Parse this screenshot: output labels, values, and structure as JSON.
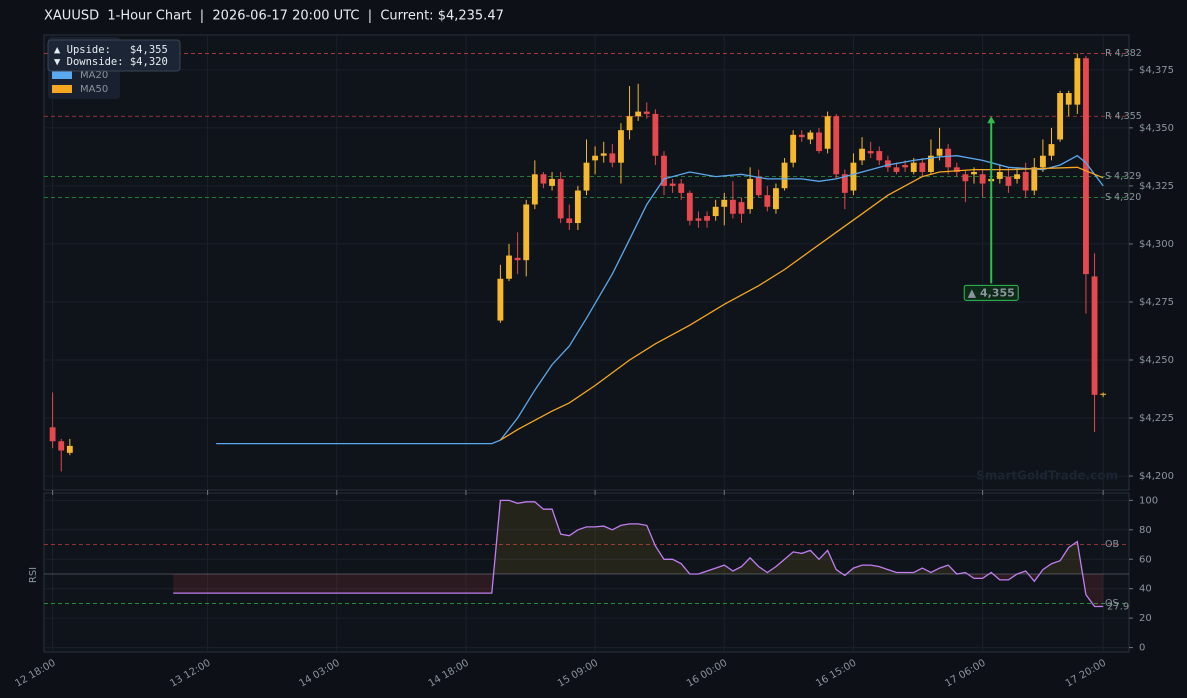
{
  "title": "XAUUSD  1-Hour Chart  |  2026-06-17 20:00 UTC  |  Current: $4,235.47",
  "watermark": "SmartGoldTrade.com",
  "info": [
    "▲ Upside:   $4,355",
    "▼ Downside: $4,320"
  ],
  "chart_data": [
    {
      "type": "candlestick",
      "x": [
        "12 18:00",
        "12 19:00",
        "12 20:00",
        "14 22:00",
        "14 23:00",
        "15 00:00",
        "15 01:00",
        "15 02:00",
        "15 03:00",
        "15 04:00",
        "15 05:00",
        "15 06:00",
        "15 07:00",
        "15 08:00",
        "15 09:00",
        "15 10:00",
        "15 11:00",
        "15 12:00",
        "15 13:00",
        "15 14:00",
        "15 15:00",
        "15 16:00",
        "15 17:00",
        "15 18:00",
        "15 19:00",
        "15 20:00",
        "15 21:00",
        "15 22:00",
        "15 23:00",
        "16 00:00",
        "16 01:00",
        "16 02:00",
        "16 03:00",
        "16 04:00",
        "16 05:00",
        "16 06:00",
        "16 07:00",
        "16 08:00",
        "16 09:00",
        "16 10:00",
        "16 11:00",
        "16 12:00",
        "16 13:00",
        "16 14:00",
        "16 15:00",
        "16 16:00",
        "16 17:00",
        "16 18:00",
        "16 19:00",
        "16 20:00",
        "16 21:00",
        "16 22:00",
        "16 23:00",
        "17 00:00",
        "17 01:00",
        "17 02:00",
        "17 03:00",
        "17 04:00",
        "17 05:00",
        "17 06:00",
        "17 07:00",
        "17 08:00",
        "17 09:00",
        "17 10:00",
        "17 11:00",
        "17 12:00",
        "17 13:00",
        "17 14:00",
        "17 15:00",
        "17 16:00",
        "17 17:00",
        "17 18:00",
        "17 19:00",
        "17 20:00"
      ],
      "open": [
        4221,
        4215,
        4210,
        4267,
        4285,
        4294,
        4293,
        4317,
        4330,
        4325,
        4328,
        4311,
        4309,
        4323,
        4336,
        4338,
        4339,
        4335,
        4349,
        4355,
        4357,
        4356,
        4338,
        4326,
        4326,
        4322,
        4311,
        4312,
        4312,
        4316,
        4319,
        4318,
        4315,
        4329,
        4321,
        4315,
        4324,
        4335,
        4347,
        4345,
        4348,
        4341,
        4355,
        4330,
        4323,
        4336,
        4340,
        4340,
        4336,
        4333,
        4334,
        4331,
        4335,
        4331,
        4338,
        4341,
        4333,
        4330,
        4330,
        4330,
        4327,
        4328,
        4329,
        4328,
        4331,
        4323,
        4333,
        4338,
        4345,
        4360,
        4360,
        4380,
        4286,
        4235
      ],
      "high": [
        4236,
        4216,
        4216,
        4291,
        4300,
        4305,
        4319,
        4336,
        4331,
        4331,
        4331,
        4317,
        4325,
        4345,
        4342,
        4344,
        4343,
        4352,
        4368,
        4369,
        4361,
        4358,
        4340,
        4328,
        4328,
        4323,
        4314,
        4314,
        4319,
        4322,
        4327,
        4320,
        4333,
        4332,
        4325,
        4326,
        4337,
        4349,
        4349,
        4349,
        4350,
        4357,
        4356,
        4332,
        4339,
        4346,
        4344,
        4342,
        4338,
        4335,
        4336,
        4337,
        4337,
        4345,
        4350,
        4343,
        4335,
        4332,
        4333,
        4332,
        4333,
        4334,
        4333,
        4333,
        4335,
        4337,
        4345,
        4350,
        4366,
        4366,
        4382,
        4381,
        4296,
        4236
      ],
      "low": [
        4212,
        4202,
        4209,
        4266,
        4284,
        4287,
        4286,
        4315,
        4324,
        4323,
        4309,
        4306,
        4306,
        4321,
        4330,
        4335,
        4333,
        4326,
        4345,
        4353,
        4354,
        4334,
        4321,
        4322,
        4319,
        4308,
        4307,
        4307,
        4310,
        4308,
        4311,
        4309,
        4313,
        4320,
        4314,
        4313,
        4323,
        4333,
        4344,
        4343,
        4339,
        4339,
        4328,
        4315,
        4321,
        4334,
        4337,
        4334,
        4331,
        4330,
        4331,
        4330,
        4329,
        4330,
        4336,
        4330,
        4329,
        4318,
        4326,
        4320,
        4324,
        4326,
        4322,
        4326,
        4320,
        4321,
        4331,
        4336,
        4344,
        4355,
        4356,
        4270,
        4219,
        4234
      ],
      "close": [
        4215,
        4211,
        4213,
        4285,
        4295,
        4293,
        4317,
        4330,
        4326,
        4328,
        4311,
        4309,
        4323,
        4335,
        4338,
        4339,
        4335,
        4349,
        4355,
        4357,
        4356,
        4338,
        4325,
        4325,
        4322,
        4310,
        4310,
        4310,
        4316,
        4319,
        4313,
        4313,
        4328,
        4321,
        4316,
        4324,
        4335,
        4347,
        4346,
        4348,
        4340,
        4355,
        4330,
        4322,
        4335,
        4341,
        4339,
        4336,
        4333,
        4331,
        4333,
        4335,
        4331,
        4338,
        4341,
        4333,
        4331,
        4327,
        4331,
        4326,
        4328,
        4331,
        4325,
        4330,
        4323,
        4333,
        4338,
        4343,
        4365,
        4365,
        4380,
        4287,
        4235,
        4235.47
      ],
      "up_color": "#f5b82e",
      "down_color": "#e5484d",
      "series": [
        {
          "name": "MA20",
          "color": "#5aa9f0",
          "x": [
            "13 13:00",
            "14 21:00",
            "14 22:00",
            "15 00:00",
            "15 02:00",
            "15 04:00",
            "15 06:00",
            "15 08:00",
            "15 11:00",
            "15 13:00",
            "15 15:00",
            "15 17:00",
            "15 20:00",
            "15 23:00",
            "16 02:00",
            "16 05:00",
            "16 09:00",
            "16 11:00",
            "16 13:00",
            "16 16:00",
            "16 19:00",
            "16 22:00",
            "17 01:00",
            "17 03:00",
            "17 06:00",
            "17 09:00",
            "17 13:00",
            "17 15:00",
            "17 17:00",
            "17 18:00",
            "17 20:00"
          ],
          "values": [
            4214,
            4214,
            4215.5,
            4225,
            4237,
            4248,
            4256,
            4268,
            4287,
            4302,
            4317,
            4328,
            4331,
            4329,
            4330,
            4328,
            4328,
            4327,
            4328,
            4331,
            4334,
            4336,
            4337.5,
            4338,
            4336,
            4333,
            4332,
            4334,
            4338,
            4335,
            4325
          ]
        },
        {
          "name": "MA50",
          "color": "#f5a623",
          "x": [
            "14 22:00",
            "15 00:00",
            "15 04:00",
            "15 06:00",
            "15 09:00",
            "15 13:00",
            "15 16:00",
            "15 20:00",
            "16 00:00",
            "16 04:00",
            "16 07:00",
            "16 10:00",
            "16 13:00",
            "16 16:00",
            "16 19:00",
            "16 23:00",
            "17 01:00",
            "17 05:00",
            "17 09:00",
            "17 17:00",
            "17 20:00"
          ],
          "values": [
            4215.5,
            4220,
            4228,
            4231.5,
            4239,
            4250,
            4257,
            4265,
            4274,
            4282,
            4289,
            4297,
            4305,
            4313,
            4321,
            4329,
            4331,
            4332,
            4332,
            4333,
            4328.5
          ]
        }
      ],
      "levels": [
        {
          "value": 4382,
          "label": "R 4,382",
          "color": "#e5484d"
        },
        {
          "value": 4355,
          "label": "R 4,355",
          "color": "#e5484d"
        },
        {
          "value": 4329,
          "label": "S 4,329",
          "color": "#2fbf4f"
        },
        {
          "value": 4320,
          "label": "S 4,320",
          "color": "#2fbf4f"
        }
      ],
      "annotation": {
        "x": "17 07:00",
        "from": 4283,
        "to": 4355,
        "label": "▲ 4,355",
        "color": "#2fbf4f"
      },
      "xlim": [
        "12 17:00",
        "17 23:00"
      ],
      "ylim": [
        4194,
        4390
      ],
      "yticks": [
        {
          "value": 4200,
          "label": "$4,200"
        },
        {
          "value": 4225,
          "label": "$4,225"
        },
        {
          "value": 4250,
          "label": "$4,250"
        },
        {
          "value": 4275,
          "label": "$4,275"
        },
        {
          "value": 4300,
          "label": "$4,300"
        },
        {
          "value": 4325,
          "label": "$4,325"
        },
        {
          "value": 4350,
          "label": "$4,350"
        },
        {
          "value": 4375,
          "label": "$4,375"
        }
      ],
      "grid": true,
      "legend": "upper left"
    },
    {
      "type": "line",
      "ylabel": "RSI",
      "color": "#c07ef0",
      "x": [
        "13 08:00",
        "14 21:00",
        "14 22:00",
        "14 23:00",
        "15 00:00",
        "15 01:00",
        "15 02:00",
        "15 03:00",
        "15 04:00",
        "15 05:00",
        "15 06:00",
        "15 07:00",
        "15 08:00",
        "15 09:00",
        "15 10:00",
        "15 11:00",
        "15 12:00",
        "15 13:00",
        "15 14:00",
        "15 15:00",
        "15 16:00",
        "15 17:00",
        "15 18:00",
        "15 19:00",
        "15 20:00",
        "15 21:00",
        "15 22:00",
        "15 23:00",
        "16 00:00",
        "16 01:00",
        "16 02:00",
        "16 03:00",
        "16 04:00",
        "16 05:00",
        "16 06:00",
        "16 07:00",
        "16 08:00",
        "16 09:00",
        "16 10:00",
        "16 11:00",
        "16 12:00",
        "16 13:00",
        "16 14:00",
        "16 15:00",
        "16 16:00",
        "16 17:00",
        "16 18:00",
        "16 19:00",
        "16 20:00",
        "16 21:00",
        "16 22:00",
        "16 23:00",
        "17 00:00",
        "17 01:00",
        "17 02:00",
        "17 03:00",
        "17 04:00",
        "17 05:00",
        "17 06:00",
        "17 07:00",
        "17 08:00",
        "17 09:00",
        "17 10:00",
        "17 11:00",
        "17 12:00",
        "17 13:00",
        "17 14:00",
        "17 15:00",
        "17 16:00",
        "17 17:00",
        "17 18:00",
        "17 19:00",
        "17 20:00"
      ],
      "values": [
        37,
        37,
        100,
        100,
        98,
        99,
        99,
        94,
        94,
        77,
        76,
        80,
        82,
        82,
        82.5,
        80,
        83,
        84,
        84,
        83,
        69,
        60,
        60,
        57,
        50,
        50,
        52,
        54,
        56,
        52,
        55,
        61,
        55,
        51,
        55,
        60,
        65,
        64,
        66,
        60,
        66,
        53,
        49,
        54,
        56,
        56,
        55,
        53,
        51,
        51,
        51,
        54,
        51,
        54,
        56,
        50,
        51,
        47,
        47,
        51,
        46,
        46,
        50,
        52,
        45,
        53,
        57,
        59,
        68,
        72,
        36,
        27.9,
        27.9
      ],
      "levels": [
        {
          "value": 70,
          "label": "OB",
          "color": "#e5484d"
        },
        {
          "value": 50,
          "color": "#6e7681"
        },
        {
          "value": 30,
          "label": "OS",
          "color": "#2fbf4f"
        }
      ],
      "xlim": [
        "12 17:00",
        "17 23:00"
      ],
      "ylim": [
        -3,
        105
      ],
      "yticks": [
        0,
        20,
        40,
        60,
        80,
        100
      ],
      "xticks": [
        "12 18:00",
        "13 12:00",
        "14 03:00",
        "14 18:00",
        "15 09:00",
        "16 00:00",
        "16 15:00",
        "17 06:00",
        "17 20:00"
      ],
      "grid": true
    }
  ]
}
